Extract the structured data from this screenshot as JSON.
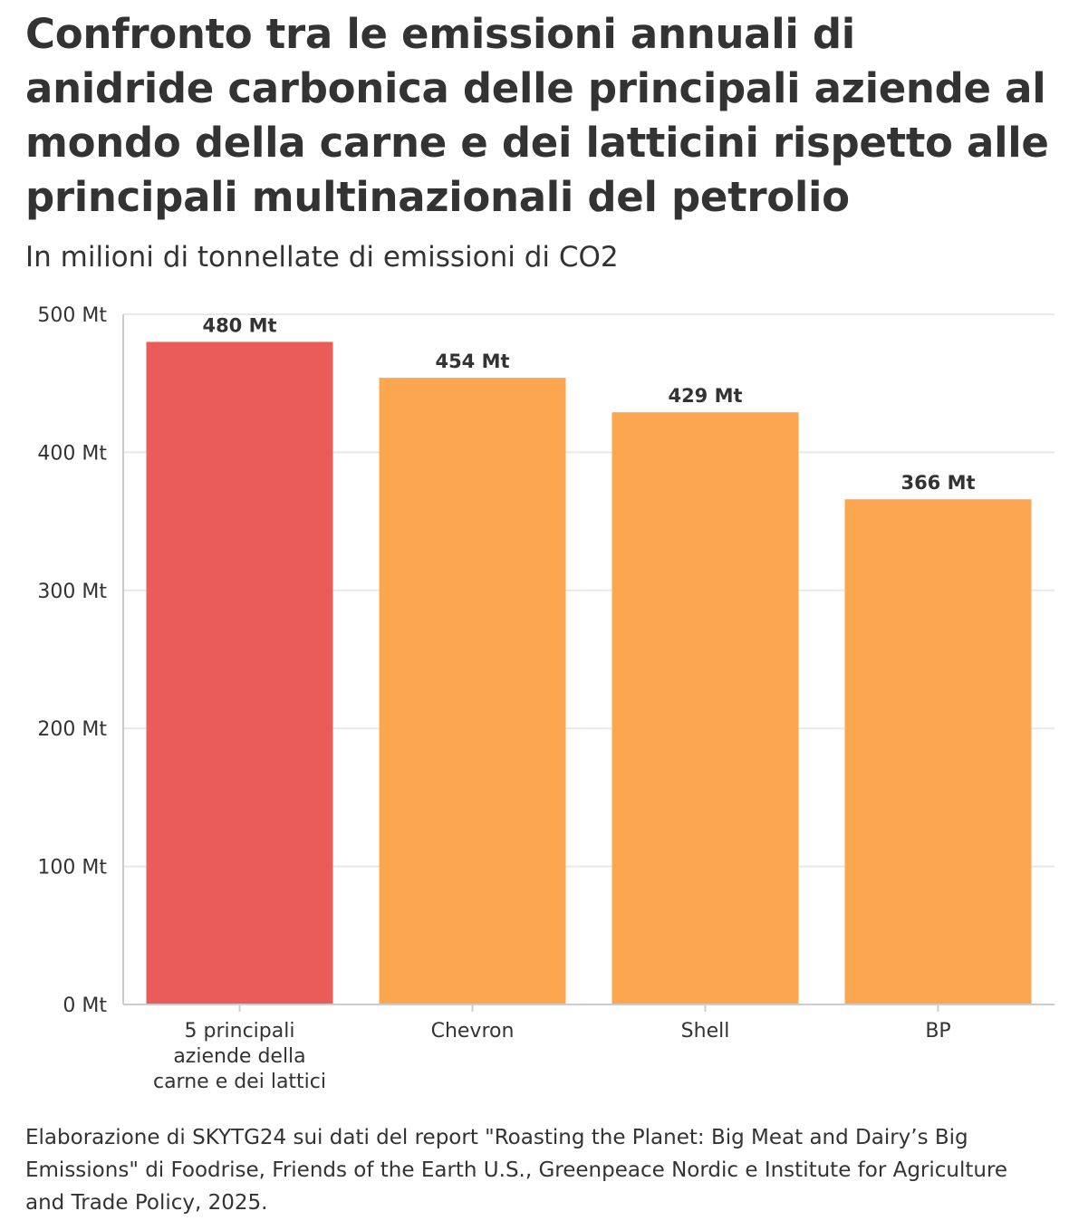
{
  "title": "Confronto tra le emissioni annuali di anidride carbonica delle principali aziende al mondo della carne e dei latticini rispetto alle principali multinazionali del petrolio",
  "subtitle": "In milioni di tonnellate di emissioni di CO2",
  "footer": "Elaborazione di SKYTG24 sui dati del report \"Roasting the Planet: Big Meat and Dairy’s Big Emissions\" di Foodrise, Friends of the Earth U.S., Greenpeace Nordic e Institute for Agriculture and Trade Policy, 2025.",
  "chart_data": {
    "type": "bar",
    "title": "Confronto tra le emissioni annuali di anidride carbonica delle principali aziende al mondo della carne e dei latticini rispetto alle principali multinazionali del petrolio",
    "subtitle": "In milioni di tonnellate di emissioni di CO2",
    "categories": [
      [
        "5 principali",
        "aziende della",
        "carne e dei lattici"
      ],
      [
        "Chevron"
      ],
      [
        "Shell"
      ],
      [
        "BP"
      ]
    ],
    "values": [
      480,
      454,
      429,
      366
    ],
    "data_labels": [
      "480 Mt",
      "454 Mt",
      "429 Mt",
      "366 Mt"
    ],
    "colors": [
      "#e95c59",
      "#fca650",
      "#fca650",
      "#fca650"
    ],
    "ylim": [
      0,
      500
    ],
    "yticks": [
      0,
      100,
      200,
      300,
      400,
      500
    ],
    "ytick_labels": [
      "0 Mt",
      "100 Mt",
      "200 Mt",
      "300 Mt",
      "400 Mt",
      "500 Mt"
    ],
    "xlabel": "",
    "ylabel": "",
    "grid": true,
    "gridline_color": "#e8e8e8",
    "axis_color": "#cccccc"
  }
}
